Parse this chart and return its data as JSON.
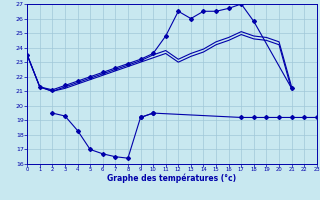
{
  "bg_color": "#c8e8f0",
  "grid_color": "#a0c8d8",
  "line_color": "#0000aa",
  "xlabel": "Graphe des températures (°c)",
  "xlim": [
    0,
    23
  ],
  "ylim": [
    16,
    27
  ],
  "xticks": [
    0,
    1,
    2,
    3,
    4,
    5,
    6,
    7,
    8,
    9,
    10,
    11,
    12,
    13,
    14,
    15,
    16,
    17,
    18,
    19,
    20,
    21,
    22,
    23
  ],
  "yticks": [
    16,
    17,
    18,
    19,
    20,
    21,
    22,
    23,
    24,
    25,
    26,
    27
  ],
  "line_upper_x": [
    0,
    1,
    2,
    3,
    4,
    5,
    6,
    7,
    8,
    9,
    10,
    11,
    12,
    13,
    14,
    15,
    16,
    17,
    18,
    21
  ],
  "line_upper_y": [
    23.5,
    21.3,
    21.1,
    21.4,
    21.7,
    22.0,
    22.3,
    22.6,
    22.9,
    23.2,
    23.6,
    24.8,
    26.5,
    26.0,
    26.5,
    26.5,
    26.7,
    27.0,
    25.8,
    21.2
  ],
  "line_mid1_x": [
    0,
    1,
    2,
    3,
    4,
    5,
    6,
    7,
    8,
    9,
    10,
    11,
    12,
    13,
    14,
    15,
    16,
    17,
    18,
    19,
    20,
    21
  ],
  "line_mid1_y": [
    23.5,
    21.3,
    21.0,
    21.3,
    21.6,
    21.9,
    22.2,
    22.5,
    22.8,
    23.1,
    23.5,
    23.8,
    23.2,
    23.6,
    23.9,
    24.4,
    24.7,
    25.1,
    24.8,
    24.7,
    24.4,
    21.3
  ],
  "line_mid2_x": [
    0,
    1,
    2,
    3,
    4,
    5,
    6,
    7,
    8,
    9,
    10,
    11,
    12,
    13,
    14,
    15,
    16,
    17,
    18,
    19,
    20,
    21
  ],
  "line_mid2_y": [
    23.5,
    21.3,
    21.0,
    21.2,
    21.5,
    21.8,
    22.1,
    22.4,
    22.7,
    23.0,
    23.3,
    23.6,
    23.0,
    23.4,
    23.7,
    24.2,
    24.5,
    24.9,
    24.6,
    24.5,
    24.2,
    21.1
  ],
  "line_lower_seg1_x": [
    2,
    3,
    4,
    5,
    6,
    7,
    8,
    9,
    10
  ],
  "line_lower_seg1_y": [
    19.5,
    19.3,
    18.3,
    17.0,
    16.7,
    16.5,
    16.4,
    19.2,
    19.5
  ],
  "line_lower_seg2_x": [
    9,
    10,
    17,
    18,
    19,
    20,
    21,
    22,
    23
  ],
  "line_lower_seg2_y": [
    19.2,
    19.5,
    19.2,
    19.2,
    19.2,
    19.2,
    19.2,
    19.2,
    19.2
  ]
}
